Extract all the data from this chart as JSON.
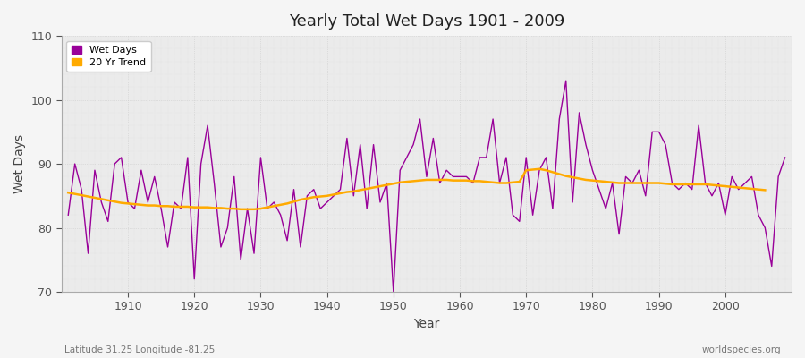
{
  "title": "Yearly Total Wet Days 1901 - 2009",
  "xlabel": "Year",
  "ylabel": "Wet Days",
  "lat_lon_label": "Latitude 31.25 Longitude -81.25",
  "watermark": "worldspecies.org",
  "ylim": [
    70,
    110
  ],
  "yticks": [
    70,
    80,
    90,
    100,
    110
  ],
  "line_color": "#990099",
  "trend_color": "#ffaa00",
  "plot_bg_color": "#ebebeb",
  "fig_bg_color": "#f5f5f5",
  "legend_wet_days": "Wet Days",
  "legend_trend": "20 Yr Trend",
  "years": [
    1901,
    1902,
    1903,
    1904,
    1905,
    1906,
    1907,
    1908,
    1909,
    1910,
    1911,
    1912,
    1913,
    1914,
    1915,
    1916,
    1917,
    1918,
    1919,
    1920,
    1921,
    1922,
    1923,
    1924,
    1925,
    1926,
    1927,
    1928,
    1929,
    1930,
    1931,
    1932,
    1933,
    1934,
    1935,
    1936,
    1937,
    1938,
    1939,
    1940,
    1941,
    1942,
    1943,
    1944,
    1945,
    1946,
    1947,
    1948,
    1949,
    1950,
    1951,
    1952,
    1953,
    1954,
    1955,
    1956,
    1957,
    1958,
    1959,
    1960,
    1961,
    1962,
    1963,
    1964,
    1965,
    1966,
    1967,
    1968,
    1969,
    1970,
    1971,
    1972,
    1973,
    1974,
    1975,
    1976,
    1977,
    1978,
    1979,
    1980,
    1981,
    1982,
    1983,
    1984,
    1985,
    1986,
    1987,
    1988,
    1989,
    1990,
    1991,
    1992,
    1993,
    1994,
    1995,
    1996,
    1997,
    1998,
    1999,
    2000,
    2001,
    2002,
    2003,
    2004,
    2005,
    2006,
    2007,
    2008,
    2009
  ],
  "wet_days": [
    82,
    90,
    86,
    76,
    89,
    84,
    81,
    90,
    91,
    84,
    83,
    89,
    84,
    88,
    83,
    77,
    84,
    83,
    91,
    72,
    90,
    96,
    87,
    77,
    80,
    88,
    75,
    83,
    76,
    91,
    83,
    84,
    82,
    78,
    86,
    77,
    85,
    86,
    83,
    84,
    85,
    86,
    94,
    85,
    93,
    83,
    93,
    84,
    87,
    70,
    89,
    91,
    93,
    97,
    88,
    94,
    87,
    89,
    88,
    88,
    88,
    87,
    91,
    91,
    97,
    87,
    91,
    82,
    81,
    91,
    82,
    89,
    91,
    83,
    97,
    103,
    84,
    98,
    93,
    89,
    86,
    83,
    87,
    79,
    88,
    87,
    89,
    85,
    95,
    95,
    93,
    87,
    86,
    87,
    86,
    96,
    87,
    85,
    87,
    82,
    88,
    86,
    87,
    88,
    82,
    80,
    74,
    88,
    91
  ],
  "trend": [
    85.5,
    85.3,
    85.1,
    84.9,
    84.7,
    84.5,
    84.3,
    84.1,
    83.9,
    83.8,
    83.7,
    83.6,
    83.5,
    83.5,
    83.4,
    83.4,
    83.3,
    83.3,
    83.3,
    83.2,
    83.2,
    83.2,
    83.1,
    83.1,
    83.0,
    83.0,
    82.9,
    82.9,
    82.9,
    83.0,
    83.2,
    83.4,
    83.6,
    83.8,
    84.1,
    84.4,
    84.6,
    84.8,
    84.9,
    85.0,
    85.2,
    85.4,
    85.6,
    85.7,
    85.9,
    86.1,
    86.3,
    86.5,
    86.7,
    86.9,
    87.1,
    87.2,
    87.3,
    87.4,
    87.5,
    87.5,
    87.5,
    87.5,
    87.4,
    87.4,
    87.4,
    87.3,
    87.3,
    87.2,
    87.1,
    87.0,
    87.0,
    87.1,
    87.2,
    89.0,
    89.1,
    89.2,
    89.0,
    88.7,
    88.4,
    88.1,
    87.9,
    87.7,
    87.5,
    87.4,
    87.3,
    87.2,
    87.1,
    87.0,
    87.0,
    87.0,
    87.0,
    87.0,
    87.0,
    87.0,
    86.9,
    86.8,
    86.8,
    86.8,
    86.8,
    86.8,
    86.8,
    86.7,
    86.6,
    86.5,
    86.4,
    86.3,
    86.2,
    86.1,
    86.0,
    85.9,
    null,
    null,
    null
  ]
}
